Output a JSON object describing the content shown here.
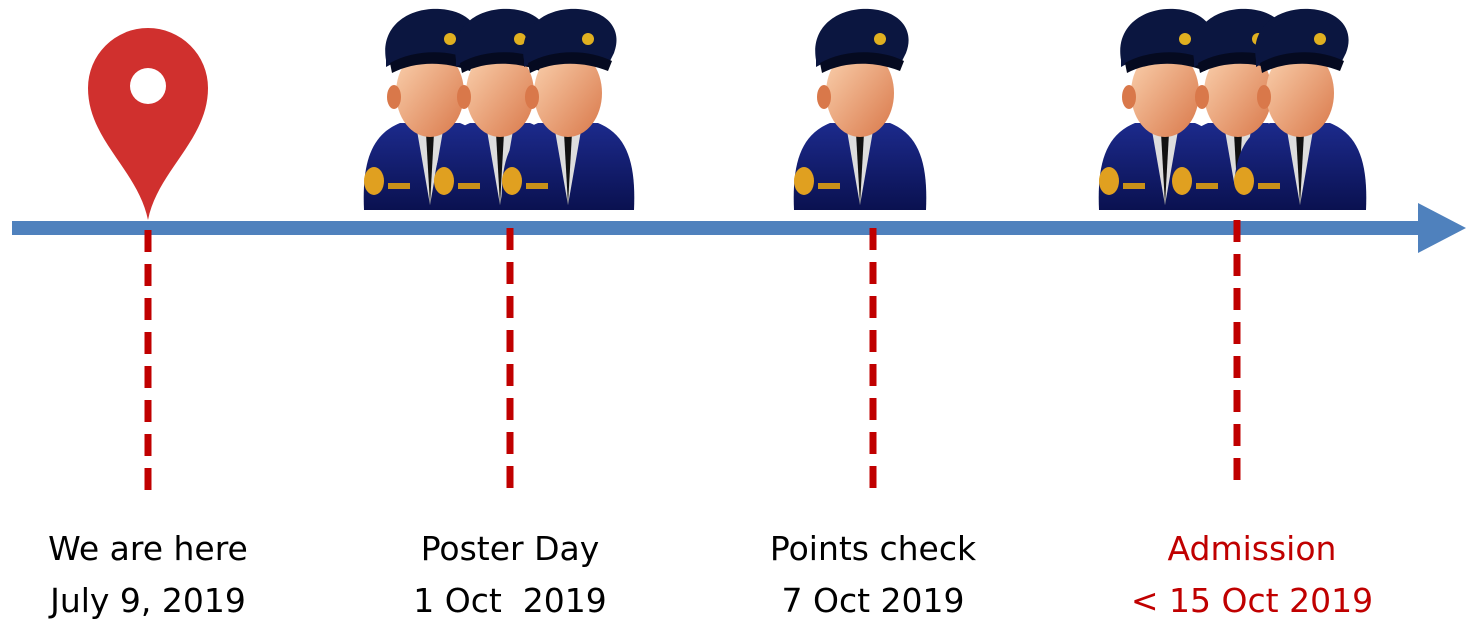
{
  "milestones": [
    {
      "label": "We are here",
      "date": "July 9, 2019"
    },
    {
      "label": "Poster Day",
      "date": "1 Oct  2019"
    },
    {
      "label": "Points check",
      "date": "7 Oct 2019"
    },
    {
      "label": "Admission",
      "date": "< 15 Oct 2019"
    }
  ]
}
